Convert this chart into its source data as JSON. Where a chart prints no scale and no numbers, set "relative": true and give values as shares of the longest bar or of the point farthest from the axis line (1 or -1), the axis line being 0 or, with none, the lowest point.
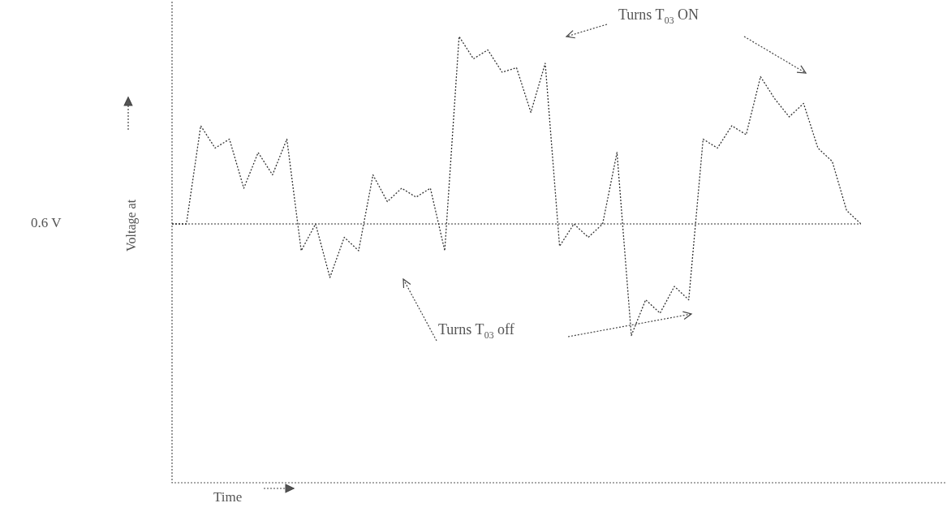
{
  "chart_data": {
    "type": "line",
    "relative": true,
    "xlabel": "Time",
    "ylabel": "Voltage at",
    "categories": [
      null,
      null,
      null,
      null,
      null,
      null,
      null,
      null,
      null,
      null,
      null,
      null,
      null,
      null,
      null,
      null,
      null,
      null,
      null,
      null,
      null,
      null,
      null,
      null,
      null,
      null,
      null,
      null,
      null,
      null,
      null,
      null,
      null,
      null,
      null,
      null,
      null,
      null,
      null,
      null,
      null,
      null,
      null,
      null,
      null,
      null,
      null,
      null,
      null
    ],
    "series": [
      {
        "color": "#333333",
        "values": [
          0.58,
          0.58,
          0.8,
          0.75,
          0.77,
          0.66,
          0.74,
          0.69,
          0.77,
          0.52,
          0.58,
          0.46,
          0.55,
          0.52,
          0.69,
          0.63,
          0.66,
          0.64,
          0.66,
          0.52,
          1.0,
          0.95,
          0.97,
          0.92,
          0.93,
          0.83,
          0.94,
          0.53,
          0.58,
          0.55,
          0.58,
          0.74,
          0.33,
          0.41,
          0.38,
          0.44,
          0.41,
          0.77,
          0.75,
          0.8,
          0.78,
          0.91,
          0.86,
          0.82,
          0.85,
          0.75,
          0.72,
          0.61,
          0.58
        ]
      }
    ],
    "ref_lines": [
      {
        "axis": "y",
        "value": 0.58,
        "label": "0.6 V",
        "color": "#333333",
        "line_style": "dotted"
      }
    ],
    "annotations": [
      "Turns T$_{03}$ ON",
      "Turns T$_{03}$ off"
    ],
    "legend": false,
    "marker": "none",
    "line_style": "dotted"
  }
}
